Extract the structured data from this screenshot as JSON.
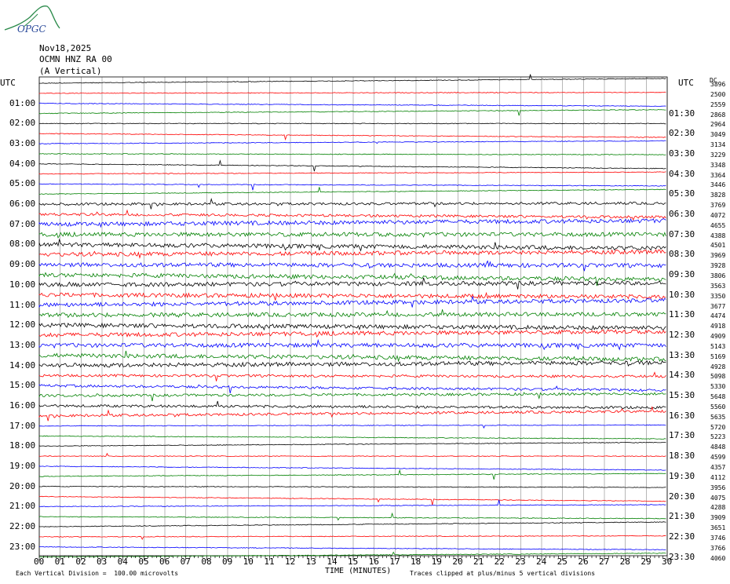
{
  "logo_text": "OPGC",
  "header": {
    "date": "Nov18,2025",
    "station": "OCMN HNZ RA 00",
    "component": "(A Vertical)"
  },
  "left_axis_title": "UTC",
  "right_axis_title": "UTC",
  "right_top_label": "DC",
  "left_labels": [
    "01:00",
    "02:00",
    "03:00",
    "04:00",
    "05:00",
    "06:00",
    "07:00",
    "08:00",
    "09:00",
    "10:00",
    "11:00",
    "12:00",
    "13:00",
    "14:00",
    "15:00",
    "16:00",
    "17:00",
    "18:00",
    "19:00",
    "20:00",
    "21:00",
    "22:00",
    "23:00"
  ],
  "right_labels": [
    "01:30",
    "02:30",
    "03:30",
    "04:30",
    "05:30",
    "06:30",
    "07:30",
    "08:30",
    "09:30",
    "10:30",
    "11:30",
    "12:30",
    "13:30",
    "14:30",
    "15:30",
    "16:30",
    "17:30",
    "18:30",
    "19:30",
    "20:30",
    "21:30",
    "22:30",
    "23:30"
  ],
  "dc_values": [
    "3896",
    "2500",
    "2559",
    "2868",
    "2964",
    "3049",
    "3134",
    "3229",
    "3348",
    "3364",
    "3446",
    "3828",
    "3769",
    "4072",
    "4655",
    "4388",
    "4501",
    "3969",
    "3928",
    "3806",
    "3563",
    "3350",
    "3677",
    "4474",
    "4918",
    "4909",
    "5143",
    "5169",
    "4928",
    "5098",
    "5330",
    "5648",
    "5560",
    "5635",
    "5720",
    "5223",
    "4848",
    "4599",
    "4357",
    "4112",
    "3956",
    "4075",
    "4288",
    "3909",
    "3651",
    "3746",
    "3766",
    "4060"
  ],
  "x_ticks": [
    "00",
    "01",
    "02",
    "03",
    "04",
    "05",
    "06",
    "07",
    "08",
    "09",
    "10",
    "11",
    "12",
    "13",
    "14",
    "15",
    "16",
    "17",
    "18",
    "19",
    "20",
    "21",
    "22",
    "23",
    "24",
    "25",
    "26",
    "27",
    "28",
    "29",
    "30"
  ],
  "xlabel": "TIME (MINUTES)",
  "footer_left": "Each Vertical Division =  100.00 microvolts",
  "footer_right": "Traces clipped at plus/minus 5 vertical divisions",
  "colors": {
    "trace_cycle": [
      "#000000",
      "#ff0000",
      "#0000ff",
      "#008000"
    ],
    "grid": "#888888",
    "logo": "#2a8a4a"
  },
  "chart_data": {
    "type": "line",
    "title": "",
    "xlabel": "TIME (MINUTES)",
    "ylabel": "",
    "xlim": [
      0,
      30
    ],
    "trace_count": 48,
    "trace_minutes": 30,
    "vertical_division_microvolts": 100,
    "clip_divisions": 5,
    "grid": true
  }
}
